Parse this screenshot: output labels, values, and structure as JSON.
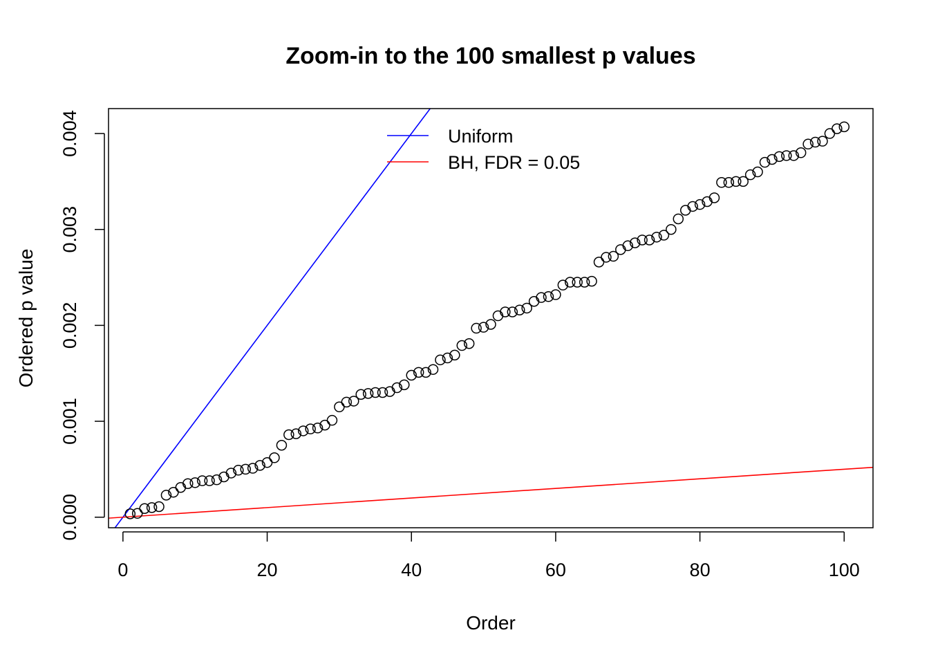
{
  "chart_data": {
    "type": "scatter",
    "title": "Zoom-in to the 100 smallest p values",
    "xlabel": "Order",
    "ylabel": "Ordered p value",
    "xlim": [
      -2.0,
      104.0
    ],
    "ylim": [
      -0.00011,
      0.00426
    ],
    "x_ticks": [
      0,
      20,
      40,
      60,
      80,
      100
    ],
    "y_ticks": [
      0.0,
      0.001,
      0.002,
      0.003,
      0.004
    ],
    "x_tick_labels": [
      "0",
      "20",
      "40",
      "60",
      "80",
      "100"
    ],
    "y_tick_labels": [
      "0.000",
      "0.001",
      "0.002",
      "0.003",
      "0.004"
    ],
    "grid": false,
    "legend_position": "top-center",
    "series": [
      {
        "kind": "points",
        "x": [
          1,
          2,
          3,
          4,
          5,
          6,
          7,
          8,
          9,
          10,
          11,
          12,
          13,
          14,
          15,
          16,
          17,
          18,
          19,
          20,
          21,
          22,
          23,
          24,
          25,
          26,
          27,
          28,
          29,
          30,
          31,
          32,
          33,
          34,
          35,
          36,
          37,
          38,
          39,
          40,
          41,
          42,
          43,
          44,
          45,
          46,
          47,
          48,
          49,
          50,
          51,
          52,
          53,
          54,
          55,
          56,
          57,
          58,
          59,
          60,
          61,
          62,
          63,
          64,
          65,
          66,
          67,
          68,
          69,
          70,
          71,
          72,
          73,
          74,
          75,
          76,
          77,
          78,
          79,
          80,
          81,
          82,
          83,
          84,
          85,
          86,
          87,
          88,
          89,
          90,
          91,
          92,
          93,
          94,
          95,
          96,
          97,
          98,
          99,
          100
        ],
        "y": [
          3.5e-05,
          4e-05,
          9e-05,
          0.0001,
          0.00011,
          0.00023,
          0.00026,
          0.00031,
          0.00035,
          0.00036,
          0.00038,
          0.00038,
          0.00039,
          0.00042,
          0.00046,
          0.00049,
          0.0005,
          0.00051,
          0.00054,
          0.00057,
          0.00062,
          0.00075,
          0.00086,
          0.00087,
          0.0009,
          0.00092,
          0.00093,
          0.00096,
          0.00101,
          0.00115,
          0.0012,
          0.00121,
          0.00128,
          0.00129,
          0.0013,
          0.0013,
          0.00131,
          0.00135,
          0.00138,
          0.00148,
          0.00151,
          0.00151,
          0.00154,
          0.00164,
          0.00166,
          0.00169,
          0.00179,
          0.00181,
          0.00197,
          0.00198,
          0.00201,
          0.0021,
          0.00214,
          0.00214,
          0.00216,
          0.00218,
          0.00225,
          0.00229,
          0.0023,
          0.00232,
          0.00242,
          0.00245,
          0.00245,
          0.00245,
          0.00246,
          0.00266,
          0.00271,
          0.00272,
          0.00279,
          0.00283,
          0.00286,
          0.00289,
          0.00289,
          0.00292,
          0.00294,
          0.003,
          0.00311,
          0.0032,
          0.00324,
          0.00326,
          0.00329,
          0.00333,
          0.00349,
          0.00349,
          0.0035,
          0.0035,
          0.00357,
          0.0036,
          0.0037,
          0.00373,
          0.00376,
          0.00377,
          0.00377,
          0.0038,
          0.00389,
          0.00391,
          0.00392,
          0.004,
          0.00405,
          0.00407
        ],
        "color": "#000000"
      },
      {
        "name": "Uniform",
        "kind": "line",
        "slope": 0.0001,
        "intercept": 0,
        "color": "#0000ff"
      },
      {
        "name": "BH, FDR = 0.05",
        "kind": "line",
        "slope": 5e-06,
        "intercept": 0,
        "color": "#ff0000"
      }
    ]
  }
}
